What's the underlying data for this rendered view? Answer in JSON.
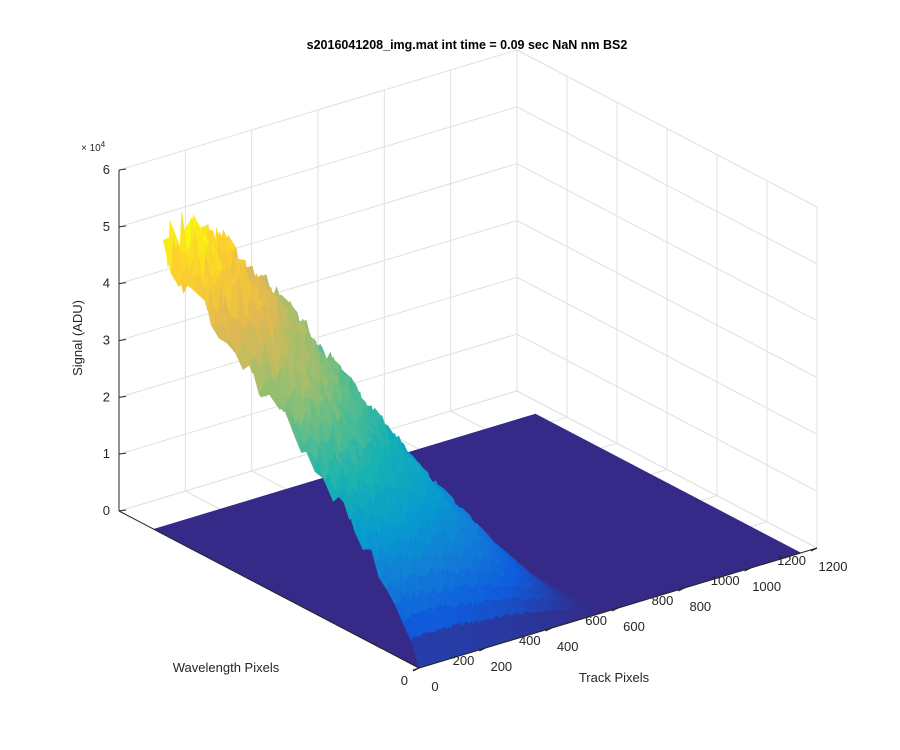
{
  "chart_data": {
    "type": "surface",
    "title": "s2016041208_img.mat int time = 0.09 sec  NaN nm BS2",
    "xlabel": "Track Pixels",
    "ylabel": "Wavelength Pixels",
    "zlabel": "Signal (ADU)",
    "z_exponent_label": "× 10",
    "z_exponent_power": "4",
    "x_ticks": [
      "0",
      "200",
      "400",
      "600",
      "800",
      "1000",
      "1200"
    ],
    "y_ticks": [
      "0",
      "200",
      "400",
      "600",
      "800",
      "1000",
      "1200"
    ],
    "z_ticks": [
      "0",
      "1",
      "2",
      "3",
      "4",
      "5",
      "6"
    ],
    "xlim": [
      0,
      1200
    ],
    "ylim": [
      0,
      1200
    ],
    "zlim": [
      0,
      60000
    ],
    "grid": true,
    "colormap": "parula",
    "floor_color": "#352a87",
    "illuminated_region": {
      "track_pixels": [
        0,
        560
      ],
      "wavelength_pixels": [
        0,
        1024
      ],
      "peak_signal_adu": 52000,
      "peak_track_pixel": 60,
      "notes_profile": [
        {
          "track_pixel": 0,
          "signal_adu": 49000
        },
        {
          "track_pixel": 60,
          "signal_adu": 52000
        },
        {
          "track_pixel": 150,
          "signal_adu": 48000
        },
        {
          "track_pixel": 300,
          "signal_adu": 38000
        },
        {
          "track_pixel": 420,
          "signal_adu": 22000
        },
        {
          "track_pixel": 520,
          "signal_adu": 5000
        },
        {
          "track_pixel": 560,
          "signal_adu": 0
        }
      ]
    }
  }
}
